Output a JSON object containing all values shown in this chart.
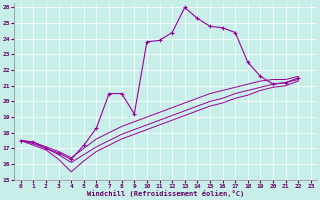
{
  "xlabel": "Windchill (Refroidissement éolien,°C)",
  "bg_color": "#c8eeea",
  "line_color": "#990099",
  "xlim": [
    -0.5,
    23.5
  ],
  "ylim": [
    15,
    26.3
  ],
  "xticks": [
    0,
    1,
    2,
    3,
    4,
    5,
    6,
    7,
    8,
    9,
    10,
    11,
    12,
    13,
    14,
    15,
    16,
    17,
    18,
    19,
    20,
    21,
    22,
    23
  ],
  "yticks": [
    15,
    16,
    17,
    18,
    19,
    20,
    21,
    22,
    23,
    24,
    25,
    26
  ],
  "main_x": [
    0,
    1,
    2,
    3,
    4,
    5,
    6,
    7,
    8,
    9,
    10,
    11,
    12,
    13,
    14,
    15,
    16,
    17,
    18,
    19,
    20,
    21,
    22
  ],
  "main_y": [
    17.5,
    17.4,
    17.0,
    16.7,
    16.3,
    17.2,
    18.3,
    20.5,
    20.5,
    19.2,
    23.8,
    23.9,
    24.4,
    26.0,
    25.3,
    24.8,
    24.7,
    24.4,
    22.5,
    21.6,
    21.1,
    21.2,
    21.5
  ],
  "line1_x": [
    0,
    1,
    2,
    3,
    4,
    5,
    6,
    7,
    8,
    9,
    10,
    11,
    12,
    13,
    14,
    15,
    16,
    17,
    18,
    19,
    20,
    21,
    22
  ],
  "line1_y": [
    17.5,
    17.4,
    17.1,
    16.8,
    16.4,
    17.0,
    17.6,
    18.0,
    18.4,
    18.7,
    19.0,
    19.3,
    19.6,
    19.9,
    20.2,
    20.5,
    20.7,
    20.9,
    21.1,
    21.3,
    21.4,
    21.4,
    21.6
  ],
  "line2_x": [
    0,
    1,
    2,
    3,
    4,
    5,
    6,
    7,
    8,
    9,
    10,
    11,
    12,
    13,
    14,
    15,
    16,
    17,
    18,
    19,
    20,
    21,
    22
  ],
  "line2_y": [
    17.5,
    17.3,
    17.0,
    16.6,
    16.1,
    16.6,
    17.1,
    17.5,
    17.9,
    18.2,
    18.5,
    18.8,
    19.1,
    19.4,
    19.7,
    20.0,
    20.2,
    20.5,
    20.7,
    20.9,
    21.1,
    21.2,
    21.4
  ],
  "line3_x": [
    0,
    1,
    2,
    3,
    4,
    5,
    6,
    7,
    8,
    9,
    10,
    11,
    12,
    13,
    14,
    15,
    16,
    17,
    18,
    19,
    20,
    21,
    22
  ],
  "line3_y": [
    17.5,
    17.2,
    16.9,
    16.3,
    15.5,
    16.2,
    16.8,
    17.2,
    17.6,
    17.9,
    18.2,
    18.5,
    18.8,
    19.1,
    19.4,
    19.7,
    19.9,
    20.2,
    20.4,
    20.7,
    20.9,
    21.0,
    21.3
  ]
}
